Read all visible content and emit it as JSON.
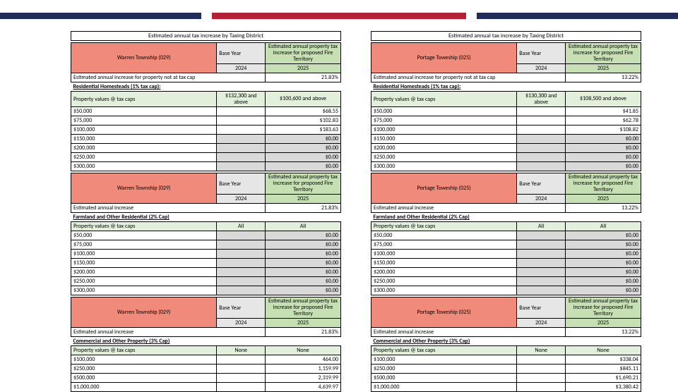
{
  "title": "Estimated annual tax increase by Taxing District",
  "labels": {
    "base_year": "Base Year",
    "est_prop": "Estimated annual property tax increase for proposed Fire Territory",
    "est_notcap": "Estimated annual increase for property not at tax cap",
    "est_inc": "Estimated annual increase",
    "pvcaps": "Property values @ tax caps",
    "res1": "Residential Homesteads (1% tax cap):",
    "farm2": "Farmland and Other Residential (2% Cap)",
    "comm3": "Commercial  and Other Property (3% Cap)",
    "all": "All",
    "none": "None"
  },
  "left": {
    "township": "Warren Township (029)",
    "base_year_val": "2024",
    "fire_year": "2025",
    "pct": "21.83%",
    "res_hdr1": "$132,300 and above",
    "res_hdr2": "$100,600 and above",
    "res_rows": [
      [
        "$50,000",
        "",
        "$68.55",
        false
      ],
      [
        "$75,000",
        "",
        "$102.83",
        false
      ],
      [
        "$100,000",
        "",
        "$183.63",
        false
      ],
      [
        "$150,000",
        "",
        "$0.00",
        true
      ],
      [
        "$200,000",
        "",
        "$0.00",
        true
      ],
      [
        "$250,000",
        "",
        "$0.00",
        true
      ],
      [
        "$300,000",
        "",
        "$0.00",
        true
      ]
    ],
    "farm_rows": [
      [
        "$50,000",
        "",
        "$0.00",
        true
      ],
      [
        "$75,000",
        "",
        "$0.00",
        true
      ],
      [
        "$100,000",
        "",
        "$0.00",
        true
      ],
      [
        "$150,000",
        "",
        "$0.00",
        true
      ],
      [
        "$200,000",
        "",
        "$0.00",
        true
      ],
      [
        "$250,000",
        "",
        "$0.00",
        true
      ],
      [
        "$300,000",
        "",
        "$0.00",
        true
      ]
    ],
    "comm_rows": [
      [
        "$100,000",
        "",
        "464.00",
        false
      ],
      [
        "$250,000",
        "",
        "1,159.99",
        false
      ],
      [
        "$500,000",
        "",
        "2,319.99",
        false
      ],
      [
        "$1,000,000",
        "",
        "4,639.97",
        false
      ]
    ]
  },
  "right": {
    "township": "Portage Toweship (025)",
    "base_year_val": "2024",
    "fire_year": "2025",
    "pct": "13.22%",
    "res_hdr1": "$130,300 and above",
    "res_hdr2": "$108,500 and above",
    "res_rows": [
      [
        "$50,000",
        "",
        "$41.85",
        false
      ],
      [
        "$75,000",
        "",
        "$62.78",
        false
      ],
      [
        "$100,000",
        "",
        "$108.82",
        false
      ],
      [
        "$150,000",
        "",
        "$0.00",
        true
      ],
      [
        "$200,000",
        "",
        "$0.00",
        true
      ],
      [
        "$250,000",
        "",
        "$0.00",
        true
      ],
      [
        "$300,000",
        "",
        "$0.00",
        true
      ]
    ],
    "farm_rows": [
      [
        "$50,000",
        "",
        "$0.00",
        true
      ],
      [
        "$75,000",
        "",
        "$0.00",
        true
      ],
      [
        "$100,000",
        "",
        "$0.00",
        true
      ],
      [
        "$150,000",
        "",
        "$0.00",
        true
      ],
      [
        "$200,000",
        "",
        "$0.00",
        true
      ],
      [
        "$250,000",
        "",
        "$0.00",
        true
      ],
      [
        "$300,000",
        "",
        "$0.00",
        true
      ]
    ],
    "comm_rows": [
      [
        "$100,000",
        "",
        "$338.04",
        false
      ],
      [
        "$250,000",
        "",
        "$845.11",
        false
      ],
      [
        "$500,000",
        "",
        "$1,690.21",
        false
      ],
      [
        "$1,000,000",
        "",
        "$3,380.42",
        false
      ]
    ]
  }
}
